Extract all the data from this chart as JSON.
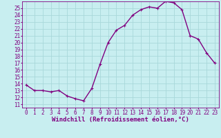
{
  "x": [
    0,
    1,
    2,
    3,
    4,
    5,
    6,
    7,
    8,
    9,
    10,
    11,
    12,
    13,
    14,
    15,
    16,
    17,
    18,
    19,
    20,
    21,
    22,
    23
  ],
  "y": [
    13.8,
    13.0,
    13.0,
    12.8,
    13.0,
    12.2,
    11.8,
    11.5,
    13.3,
    16.8,
    20.0,
    21.8,
    22.5,
    24.0,
    24.8,
    25.2,
    25.0,
    26.0,
    25.8,
    24.8,
    21.0,
    20.5,
    18.5,
    17.0
  ],
  "line_color": "#800080",
  "marker": "+",
  "bg_color": "#c8eef0",
  "grid_color": "#a8d8da",
  "xlabel": "Windchill (Refroidissement éolien,°C)",
  "xlim": [
    -0.5,
    23.5
  ],
  "ylim": [
    10.5,
    26.0
  ],
  "yticks": [
    11,
    12,
    13,
    14,
    15,
    16,
    17,
    18,
    19,
    20,
    21,
    22,
    23,
    24,
    25
  ],
  "xticks": [
    0,
    1,
    2,
    3,
    4,
    5,
    6,
    7,
    8,
    9,
    10,
    11,
    12,
    13,
    14,
    15,
    16,
    17,
    18,
    19,
    20,
    21,
    22,
    23
  ],
  "xlabel_fontsize": 6.5,
  "tick_fontsize": 5.5,
  "line_width": 1.0,
  "marker_size": 3.5
}
